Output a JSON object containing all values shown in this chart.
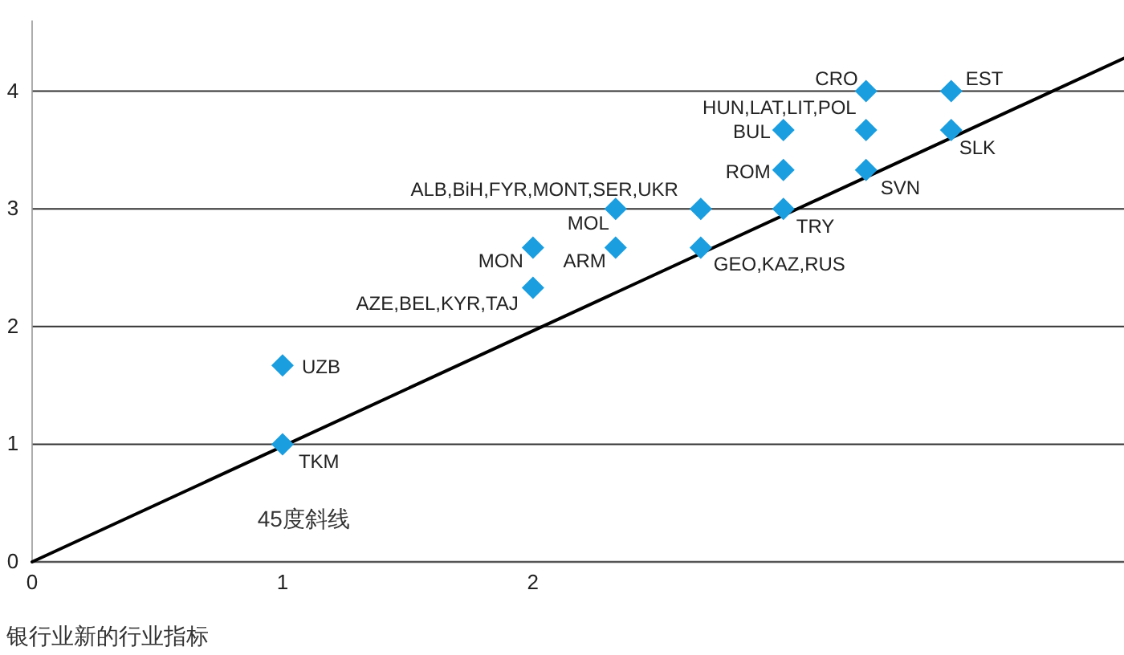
{
  "chart_data": {
    "type": "scatter",
    "xlabel": "银行业新的行业指标",
    "annotations": [
      "45度斜线"
    ],
    "xlim": [
      0,
      4.36
    ],
    "ylim": [
      0,
      4.6
    ],
    "xticks": [
      0,
      1,
      2
    ],
    "yticks": [
      0,
      1,
      2,
      3,
      4
    ],
    "grid": "y",
    "marker": "diamond",
    "series": [
      {
        "name": "TKM",
        "color": "#1a9ee0",
        "x": [
          1
        ],
        "values": [
          1
        ]
      },
      {
        "name": "UZB",
        "color": "#1a9ee0",
        "x": [
          1
        ],
        "values": [
          1.67
        ]
      },
      {
        "name": "AZE,BEL,KYR,TAJ",
        "color": "#1a9ee0",
        "x": [
          2
        ],
        "values": [
          2.33
        ]
      },
      {
        "name": "MON",
        "color": "#1a9ee0",
        "x": [
          2
        ],
        "values": [
          2.67
        ]
      },
      {
        "name": "ARM",
        "color": "#1a9ee0",
        "x": [
          2.33
        ],
        "values": [
          2.67
        ]
      },
      {
        "name": "MOL",
        "color": "#1a9ee0",
        "x": [
          2.33
        ],
        "values": [
          3
        ]
      },
      {
        "name": "ALB,BiH,FYR,MONT,SER,UKR",
        "color": "#1a9ee0",
        "x": [
          2.67
        ],
        "values": [
          3
        ]
      },
      {
        "name": "GEO,KAZ,RUS",
        "color": "#1a9ee0",
        "x": [
          2.67
        ],
        "values": [
          2.67
        ]
      },
      {
        "name": "TRY",
        "color": "#1a9ee0",
        "x": [
          3
        ],
        "values": [
          3
        ]
      },
      {
        "name": "ROM",
        "color": "#1a9ee0",
        "x": [
          3
        ],
        "values": [
          3.33
        ]
      },
      {
        "name": "BUL",
        "color": "#1a9ee0",
        "x": [
          3
        ],
        "values": [
          3.67
        ]
      },
      {
        "name": "HUN,LAT,LIT,POL",
        "color": "#1a9ee0",
        "x": [
          3.33
        ],
        "values": [
          3.67
        ]
      },
      {
        "name": "SVN",
        "color": "#1a9ee0",
        "x": [
          3.33
        ],
        "values": [
          3.33
        ]
      },
      {
        "name": "CRO",
        "color": "#1a9ee0",
        "x": [
          3.33
        ],
        "values": [
          4
        ]
      },
      {
        "name": "EST",
        "color": "#1a9ee0",
        "x": [
          3.67
        ],
        "values": [
          4
        ]
      },
      {
        "name": "SLK",
        "color": "#1a9ee0",
        "x": [
          3.67
        ],
        "values": [
          3.67
        ]
      },
      {
        "type": "line",
        "color": "#000000",
        "line_style": "solid",
        "marker": "none",
        "x": [
          0,
          4.36
        ],
        "values": [
          0,
          4.28
        ]
      }
    ]
  }
}
